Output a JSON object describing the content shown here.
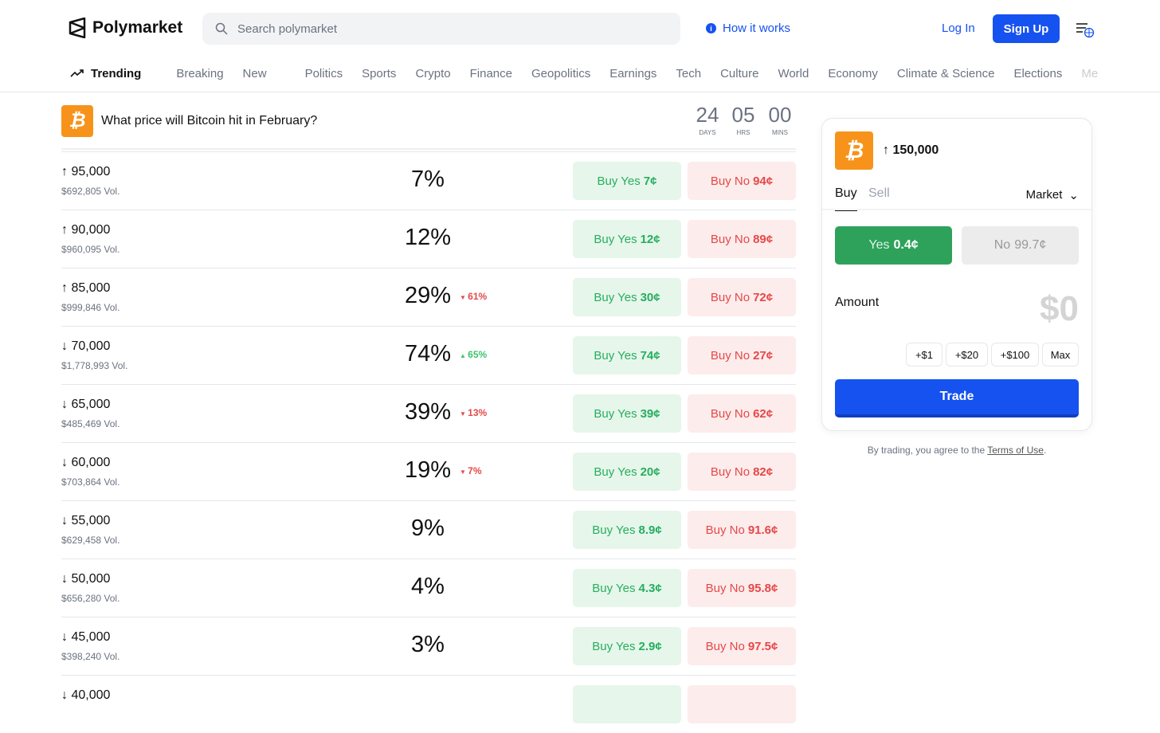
{
  "header": {
    "brand": "Polymarket",
    "search_placeholder": "Search polymarket",
    "how_it_works": "How it works",
    "login": "Log In",
    "signup": "Sign Up"
  },
  "nav": {
    "trending": "Trending",
    "items": [
      "Breaking",
      "New",
      "Politics",
      "Sports",
      "Crypto",
      "Finance",
      "Geopolitics",
      "Earnings",
      "Tech",
      "Culture",
      "World",
      "Economy",
      "Climate & Science",
      "Elections",
      "Me"
    ]
  },
  "market": {
    "icon": "bitcoin-icon",
    "title": "What price will Bitcoin hit in February?",
    "countdown": [
      {
        "value": "24",
        "unit": "DAYS"
      },
      {
        "value": "05",
        "unit": "HRS"
      },
      {
        "value": "00",
        "unit": "MINS"
      }
    ],
    "rows": [
      {
        "dir": "↑",
        "label": "95,000",
        "vol": "$692,805 Vol.",
        "pct": "7%",
        "chg": "",
        "chg_dir": "",
        "yes": "7¢",
        "no": "94¢"
      },
      {
        "dir": "↑",
        "label": "90,000",
        "vol": "$960,095 Vol.",
        "pct": "12%",
        "chg": "",
        "chg_dir": "",
        "yes": "12¢",
        "no": "89¢"
      },
      {
        "dir": "↑",
        "label": "85,000",
        "vol": "$999,846 Vol.",
        "pct": "29%",
        "chg": "61%",
        "chg_dir": "down",
        "yes": "30¢",
        "no": "72¢"
      },
      {
        "dir": "↓",
        "label": "70,000",
        "vol": "$1,778,993 Vol.",
        "pct": "74%",
        "chg": "65%",
        "chg_dir": "up",
        "yes": "74¢",
        "no": "27¢"
      },
      {
        "dir": "↓",
        "label": "65,000",
        "vol": "$485,469 Vol.",
        "pct": "39%",
        "chg": "13%",
        "chg_dir": "down",
        "yes": "39¢",
        "no": "62¢"
      },
      {
        "dir": "↓",
        "label": "60,000",
        "vol": "$703,864 Vol.",
        "pct": "19%",
        "chg": "7%",
        "chg_dir": "down",
        "yes": "20¢",
        "no": "82¢"
      },
      {
        "dir": "↓",
        "label": "55,000",
        "vol": "$629,458 Vol.",
        "pct": "9%",
        "chg": "",
        "chg_dir": "",
        "yes": "8.9¢",
        "no": "91.6¢"
      },
      {
        "dir": "↓",
        "label": "50,000",
        "vol": "$656,280 Vol.",
        "pct": "4%",
        "chg": "",
        "chg_dir": "",
        "yes": "4.3¢",
        "no": "95.8¢"
      },
      {
        "dir": "↓",
        "label": "45,000",
        "vol": "$398,240 Vol.",
        "pct": "3%",
        "chg": "",
        "chg_dir": "",
        "yes": "2.9¢",
        "no": "97.5¢"
      },
      {
        "dir": "↓",
        "label": "40,000",
        "vol": "",
        "pct": "",
        "chg": "",
        "chg_dir": "",
        "yes": "",
        "no": ""
      }
    ],
    "buy_yes_prefix": "Buy Yes",
    "buy_no_prefix": "Buy No"
  },
  "panel": {
    "title": "↑ 150,000",
    "tab_buy": "Buy",
    "tab_sell": "Sell",
    "order_type": "Market",
    "yes_label": "Yes",
    "yes_price": "0.4¢",
    "no_label": "No",
    "no_price": "99.7¢",
    "amount_label": "Amount",
    "amount": "$0",
    "chips": [
      "+$1",
      "+$20",
      "+$100",
      "Max"
    ],
    "trade": "Trade"
  },
  "terms": {
    "prefix": "By trading, you agree to the ",
    "link": "Terms of Use",
    "suffix": "."
  },
  "colors": {
    "accent": "#1652f0",
    "yes": "#27ae60",
    "no": "#e54848",
    "bitcoin": "#f7931a"
  }
}
